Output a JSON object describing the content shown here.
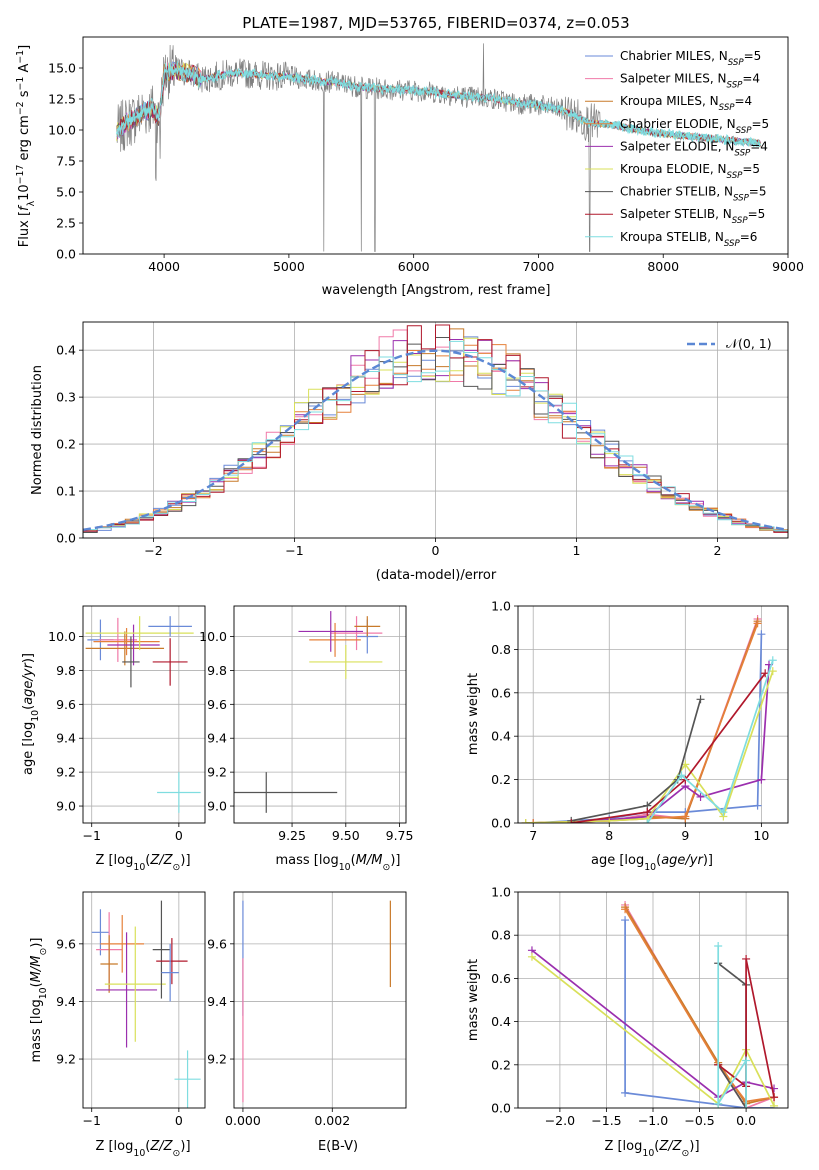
{
  "figure": {
    "title": "PLATE=1987, MJD=53765, FIBERID=0374, z=0.053"
  },
  "series_names": [
    "Chabrier MILES, N_SSP=5",
    "Salpeter MILES, N_SSP=4",
    "Kroupa MILES, N_SSP=4",
    "Chabrier ELODIE, N_SSP=5",
    "Salpeter ELODIE, N_SSP=4",
    "Kroupa ELODIE, N_SSP=5",
    "Chabrier STELIB, N_SSP=5",
    "Salpeter STELIB, N_SSP=5",
    "Kroupa STELIB, N_SSP=6"
  ],
  "colors": {
    "series": [
      "#6a8ad8",
      "#f07aa8",
      "#c87a2a",
      "#e5803a",
      "#9b2fae",
      "#d9e05a",
      "#555555",
      "#b0182c",
      "#7fdde0"
    ],
    "data": "#808080",
    "gaussian": "#5b87d4",
    "grid": "#b0b0b0"
  },
  "chart_data": [
    {
      "id": "spectrum",
      "type": "line",
      "title": "PLATE=1987, MJD=53765, FIBERID=0374, z=0.053",
      "xlabel": "wavelength [Angstrom, rest frame]",
      "ylabel": "Flux [f_λ 10^-17 erg cm^-2 s^-1 A^-1]",
      "xlim": [
        3350,
        9000
      ],
      "ylim": [
        0,
        17.5
      ],
      "xticks": [
        4000,
        5000,
        6000,
        7000,
        8000,
        9000
      ],
      "yticks": [
        0.0,
        2.5,
        5.0,
        7.5,
        10.0,
        12.5,
        15.0
      ],
      "grid": false,
      "legend": "top-right",
      "approximate_continuum": {
        "x": [
          3620,
          3700,
          3800,
          3900,
          3960,
          4000,
          4100,
          4200,
          4300,
          4400,
          4500,
          4600,
          4800,
          5000,
          5200,
          5400,
          5600,
          5800,
          6000,
          6200,
          6400,
          6600,
          6800,
          7000,
          7200,
          7400,
          7600,
          7800,
          8000,
          8200,
          8400,
          8600,
          8800
        ],
        "y": [
          9.8,
          10.6,
          11.2,
          11.8,
          10.9,
          14.6,
          14.8,
          14.6,
          14.1,
          14.3,
          14.5,
          14.6,
          14.4,
          14.3,
          14.0,
          13.8,
          13.4,
          13.3,
          13.2,
          13.0,
          12.7,
          12.6,
          12.2,
          12.0,
          11.6,
          10.6,
          10.4,
          10.0,
          9.7,
          9.5,
          9.3,
          9.1,
          8.9
        ]
      }
    },
    {
      "id": "residuals",
      "type": "bar",
      "xlabel": "(data-model)/error",
      "ylabel": "Normed distribution",
      "xlim": [
        -2.5,
        2.5
      ],
      "ylim": [
        0,
        0.46
      ],
      "xticks": [
        -2,
        -1,
        0,
        1,
        2
      ],
      "yticks": [
        0.0,
        0.1,
        0.2,
        0.3,
        0.4
      ],
      "grid": true,
      "legend": "top-right",
      "legend_entry": "N(0,1)",
      "approximate_histogram_centers": [
        -2.45,
        -2.35,
        -2.25,
        -2.15,
        -2.05,
        -1.95,
        -1.85,
        -1.75,
        -1.65,
        -1.55,
        -1.45,
        -1.35,
        -1.25,
        -1.15,
        -1.05,
        -0.95,
        -0.85,
        -0.75,
        -0.65,
        -0.55,
        -0.45,
        -0.35,
        -0.25,
        -0.15,
        -0.05,
        0.05,
        0.15,
        0.25,
        0.35,
        0.45,
        0.55,
        0.65,
        0.75,
        0.85,
        0.95,
        1.05,
        1.15,
        1.25,
        1.35,
        1.45,
        1.55,
        1.65,
        1.75,
        1.85,
        1.95,
        2.05,
        2.15,
        2.25,
        2.35,
        2.45
      ],
      "gaussian": {
        "mean": 0,
        "sigma": 1
      }
    },
    {
      "id": "age_vs_Z",
      "type": "scatter",
      "xlabel": "Z [log10(Z/Z_sun)]",
      "ylabel": "age [log10(age/yr)]",
      "xlim": [
        -1.1,
        0.3
      ],
      "ylim": [
        8.9,
        10.18
      ],
      "xticks": [
        -1,
        0
      ],
      "yticks": [
        9.0,
        9.2,
        9.4,
        9.6,
        9.8,
        10.0
      ],
      "grid": true,
      "points": [
        {
          "x": -0.9,
          "y": 9.98,
          "xerr": 0.15,
          "yerr": 0.12
        },
        {
          "x": -0.7,
          "y": 9.98,
          "xerr": 0.22,
          "yerr": 0.13
        },
        {
          "x": -0.62,
          "y": 9.93,
          "xerr": 0.45,
          "yerr": 0.1
        },
        {
          "x": -0.6,
          "y": 9.97,
          "xerr": 0.38,
          "yerr": 0.08
        },
        {
          "x": -0.52,
          "y": 9.95,
          "xerr": 0.3,
          "yerr": 0.12
        },
        {
          "x": -0.45,
          "y": 10.02,
          "xerr": 0.62,
          "yerr": 0.1
        },
        {
          "x": -0.55,
          "y": 9.85,
          "xerr": 0.1,
          "yerr": 0.15
        },
        {
          "x": -0.1,
          "y": 9.85,
          "xerr": 0.2,
          "yerr": 0.14
        },
        {
          "x": 0.0,
          "y": 9.08,
          "xerr": 0.25,
          "yerr": 0.12
        },
        {
          "x": -0.1,
          "y": 10.06,
          "xerr": 0.25,
          "yerr": 0.06
        }
      ]
    },
    {
      "id": "age_vs_mass",
      "type": "scatter",
      "xlabel": "mass [log10(M/M_sun)]",
      "ylabel": "",
      "xlim": [
        8.98,
        9.78
      ],
      "ylim": [
        8.9,
        10.18
      ],
      "xticks": [
        9.25,
        9.5,
        9.75
      ],
      "yticks": [
        9.0,
        9.2,
        9.4,
        9.6,
        9.8,
        10.0
      ],
      "grid": true,
      "points": [
        {
          "x": 9.6,
          "y": 10.0,
          "xerr": 0.05,
          "yerr": 0.1
        },
        {
          "x": 9.55,
          "y": 10.02,
          "xerr": 0.12,
          "yerr": 0.1
        },
        {
          "x": 9.6,
          "y": 10.06,
          "xerr": 0.06,
          "yerr": 0.06
        },
        {
          "x": 9.45,
          "y": 9.98,
          "xerr": 0.12,
          "yerr": 0.1
        },
        {
          "x": 9.43,
          "y": 10.03,
          "xerr": 0.15,
          "yerr": 0.12
        },
        {
          "x": 9.5,
          "y": 9.85,
          "xerr": 0.17,
          "yerr": 0.1
        },
        {
          "x": 9.13,
          "y": 9.08,
          "xerr": 0.33,
          "yerr": 0.12
        }
      ]
    },
    {
      "id": "massweight_vs_age",
      "type": "line",
      "xlabel": "age [log10(age/yr)]",
      "ylabel": "mass weight",
      "xlim": [
        6.8,
        10.35
      ],
      "ylim": [
        0,
        1.0
      ],
      "xticks": [
        7,
        8,
        9,
        10
      ],
      "yticks": [
        0.0,
        0.2,
        0.4,
        0.6,
        0.8,
        1.0
      ],
      "grid": true,
      "series": [
        {
          "x": [
            7.0,
            8.0,
            8.5,
            9.0,
            9.95,
            10.0
          ],
          "y": [
            0.0,
            0.02,
            0.05,
            0.05,
            0.08,
            0.87
          ]
        },
        {
          "x": [
            7.0,
            8.0,
            8.5,
            9.0,
            9.95
          ],
          "y": [
            0.0,
            0.01,
            0.04,
            0.02,
            0.94
          ]
        },
        {
          "x": [
            6.9,
            8.0,
            8.5,
            9.0,
            9.95
          ],
          "y": [
            0.0,
            0.01,
            0.03,
            0.02,
            0.93
          ]
        },
        {
          "x": [
            7.0,
            8.0,
            8.5,
            9.0,
            9.95
          ],
          "y": [
            0.0,
            0.01,
            0.02,
            0.03,
            0.92
          ]
        },
        {
          "x": [
            7.5,
            8.5,
            9.0,
            9.2,
            10.0,
            10.1
          ],
          "y": [
            0.0,
            0.03,
            0.17,
            0.12,
            0.2,
            0.73
          ]
        },
        {
          "x": [
            6.9,
            8.0,
            8.5,
            9.0,
            9.5,
            10.15
          ],
          "y": [
            0.0,
            0.01,
            0.02,
            0.27,
            0.03,
            0.7
          ]
        },
        {
          "x": [
            7.5,
            8.5,
            8.9,
            9.2
          ],
          "y": [
            0.01,
            0.08,
            0.2,
            0.57
          ]
        },
        {
          "x": [
            7.5,
            8.5,
            9.0,
            10.05
          ],
          "y": [
            0.0,
            0.05,
            0.2,
            0.69
          ]
        },
        {
          "x": [
            8.5,
            8.95,
            9.5,
            10.15
          ],
          "y": [
            0.0,
            0.22,
            0.05,
            0.75
          ]
        }
      ]
    },
    {
      "id": "mass_vs_Z",
      "type": "scatter",
      "xlabel": "Z [log10(Z/Z_sun)]",
      "ylabel": "mass [log10(M/M_sun)]",
      "xlim": [
        -1.1,
        0.3
      ],
      "ylim": [
        9.03,
        9.78
      ],
      "xticks": [
        -1,
        0
      ],
      "yticks": [
        9.2,
        9.4,
        9.6
      ],
      "grid": true,
      "points": [
        {
          "x": -0.9,
          "y": 9.64,
          "xerr": 0.1,
          "yerr": 0.08
        },
        {
          "x": -0.8,
          "y": 9.58,
          "xerr": 0.15,
          "yerr": 0.13
        },
        {
          "x": -0.8,
          "y": 9.53,
          "xerr": 0.1,
          "yerr": 0.1
        },
        {
          "x": -0.65,
          "y": 9.6,
          "xerr": 0.25,
          "yerr": 0.1
        },
        {
          "x": -0.6,
          "y": 9.44,
          "xerr": 0.35,
          "yerr": 0.2
        },
        {
          "x": -0.5,
          "y": 9.46,
          "xerr": 0.35,
          "yerr": 0.2
        },
        {
          "x": -0.2,
          "y": 9.58,
          "xerr": 0.1,
          "yerr": 0.17
        },
        {
          "x": -0.08,
          "y": 9.54,
          "xerr": 0.18,
          "yerr": 0.08
        },
        {
          "x": 0.1,
          "y": 9.13,
          "xerr": 0.15,
          "yerr": 0.1
        },
        {
          "x": -0.1,
          "y": 9.5,
          "xerr": 0.1,
          "yerr": 0.1
        }
      ]
    },
    {
      "id": "mass_vs_ebv",
      "type": "scatter",
      "xlabel": "E(B-V)",
      "ylabel": "",
      "xlim": [
        -0.0002,
        0.00365
      ],
      "ylim": [
        9.03,
        9.78
      ],
      "xticks": [
        0.0,
        0.002
      ],
      "yticks": [
        9.2,
        9.4,
        9.6
      ],
      "grid": true,
      "points": [
        {
          "x": 0.0,
          "y": 9.55,
          "xerr": 0.0,
          "yerr": 0.2
        },
        {
          "x": 0.0,
          "y": 9.3,
          "xerr": 0.0,
          "yerr": 0.25
        },
        {
          "x": 0.0033,
          "y": 9.6,
          "xerr": 0.0,
          "yerr": 0.15
        }
      ]
    },
    {
      "id": "massweight_vs_Z",
      "type": "line",
      "xlabel": "Z [log10(Z/Z_sun)]",
      "ylabel": "mass weight",
      "xlim": [
        -2.45,
        0.45
      ],
      "ylim": [
        0,
        1.0
      ],
      "xticks": [
        -2.0,
        -1.5,
        -1.0,
        -0.5,
        0.0
      ],
      "yticks": [
        0.0,
        0.2,
        0.4,
        0.6,
        0.8,
        1.0
      ],
      "grid": true,
      "series": [
        {
          "x": [
            -1.3,
            -1.3,
            0.0,
            0.3
          ],
          "y": [
            0.87,
            0.07,
            0.0,
            0.0
          ]
        },
        {
          "x": [
            -1.3,
            -0.3,
            0.0,
            0.3
          ],
          "y": [
            0.94,
            0.2,
            0.0,
            0.05
          ]
        },
        {
          "x": [
            -1.3,
            -0.3,
            0.0,
            0.3
          ],
          "y": [
            0.93,
            0.21,
            0.02,
            0.05
          ]
        },
        {
          "x": [
            -1.3,
            -0.3,
            0.0,
            0.3
          ],
          "y": [
            0.92,
            0.2,
            0.03,
            0.05
          ]
        },
        {
          "x": [
            -2.3,
            -0.3,
            0.0,
            0.3
          ],
          "y": [
            0.73,
            0.05,
            0.12,
            0.09
          ]
        },
        {
          "x": [
            -2.3,
            -0.3,
            0.0,
            0.3
          ],
          "y": [
            0.7,
            0.02,
            0.27,
            0.01
          ]
        },
        {
          "x": [
            -0.3,
            0.0,
            0.0,
            -0.3
          ],
          "y": [
            0.67,
            0.57,
            0.0,
            0.2
          ]
        },
        {
          "x": [
            -0.3,
            0.0,
            0.0,
            0.3
          ],
          "y": [
            0.2,
            0.1,
            0.69,
            0.05
          ]
        },
        {
          "x": [
            -0.3,
            -0.3,
            0.0,
            0.0
          ],
          "y": [
            0.75,
            0.02,
            0.22,
            0.0
          ]
        }
      ]
    }
  ]
}
